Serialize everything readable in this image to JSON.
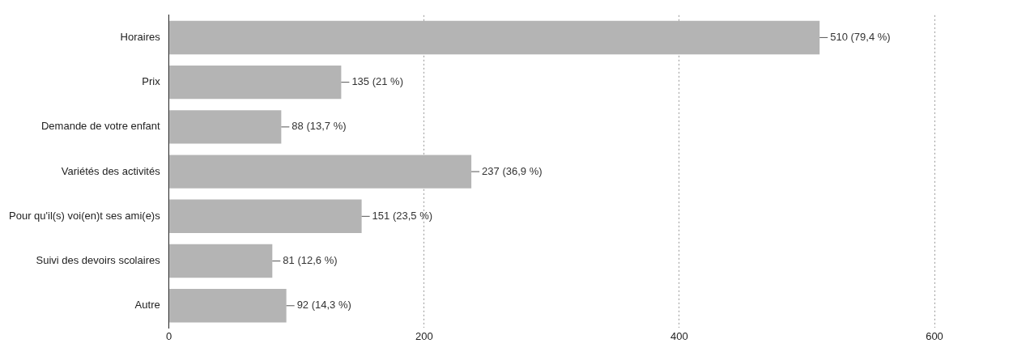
{
  "chart_data": {
    "type": "bar",
    "orientation": "horizontal",
    "categories": [
      "Horaires",
      "Prix",
      "Demande de votre enfant",
      "Variétés des activités",
      "Pour qu'il(s) voi(en)t ses ami(e)s",
      "Suivi des devoirs scolaires",
      "Autre"
    ],
    "values": [
      510,
      135,
      88,
      237,
      151,
      81,
      92
    ],
    "value_labels": [
      "510 (79,4 %)",
      "135 (21 %)",
      "88 (13,7 %)",
      "237 (36,9 %)",
      "151 (23,5 %)",
      "81 (12,6 %)",
      "92 (14,3 %)"
    ],
    "color": "#b4b4b4",
    "xlim": [
      0,
      600
    ],
    "xticks": [
      0,
      200,
      400,
      600
    ],
    "grid": "x",
    "legend": false
  }
}
